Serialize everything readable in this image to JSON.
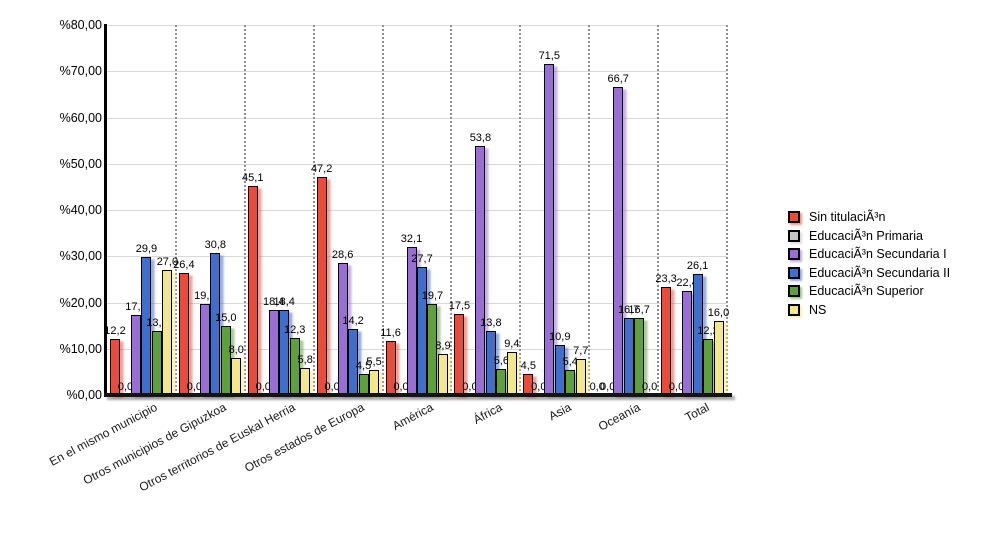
{
  "chart_data": {
    "type": "bar",
    "title": "",
    "categories": [
      "En el mismo municipio",
      "Otros municipios de Gipuzkoa",
      "Otros territorios de Euskal Herria",
      "Otros estados de Europa",
      "América",
      "África",
      "Asia",
      "Oceanía",
      "Total"
    ],
    "series": [
      {
        "name": "Sin titulaciÃ³n",
        "color": "#ea4c3b",
        "values": [
          12.2,
          26.4,
          45.1,
          47.2,
          11.6,
          17.5,
          4.5,
          0.0,
          23.3
        ]
      },
      {
        "name": "EducaciÃ³n Primaria",
        "color": "#c4c4c4",
        "values": [
          0.0,
          0.0,
          0.0,
          0.0,
          0.0,
          0.0,
          0.0,
          0.0,
          0.0
        ]
      },
      {
        "name": "EducaciÃ³n Secundaria I",
        "color": "#9a6fd4",
        "values": [
          17.2,
          19.7,
          18.4,
          28.6,
          32.1,
          53.8,
          71.5,
          66.7,
          22.4
        ]
      },
      {
        "name": "EducaciÃ³n Secundaria II",
        "color": "#3f6ecb",
        "values": [
          29.9,
          30.8,
          18.4,
          14.2,
          27.7,
          13.8,
          10.9,
          16.7,
          26.1
        ]
      },
      {
        "name": "EducaciÃ³n Superior",
        "color": "#5da03c",
        "values": [
          13.8,
          15.0,
          12.3,
          4.5,
          19.7,
          5.6,
          5.4,
          16.7,
          12.2
        ]
      },
      {
        "name": "NS",
        "color": "#f2e78d",
        "values": [
          27.0,
          8.0,
          5.8,
          5.5,
          8.9,
          9.4,
          7.7,
          0.0,
          16.0
        ]
      }
    ],
    "ylim": [
      0,
      80
    ],
    "y_ticks": [
      {
        "value": 80,
        "label": "%80,00"
      },
      {
        "value": 70,
        "label": "%70,00"
      },
      {
        "value": 60,
        "label": "%60,00"
      },
      {
        "value": 50,
        "label": "%50,00"
      },
      {
        "value": 40,
        "label": "%40,00"
      },
      {
        "value": 30,
        "label": "%30,00"
      },
      {
        "value": 20,
        "label": "%20,00"
      },
      {
        "value": 10,
        "label": "%10,00"
      },
      {
        "value": 0,
        "label": "%0,00"
      }
    ],
    "grid": true,
    "value_labels_shown": true,
    "decimal_separator": ",",
    "legend_position": "right"
  }
}
